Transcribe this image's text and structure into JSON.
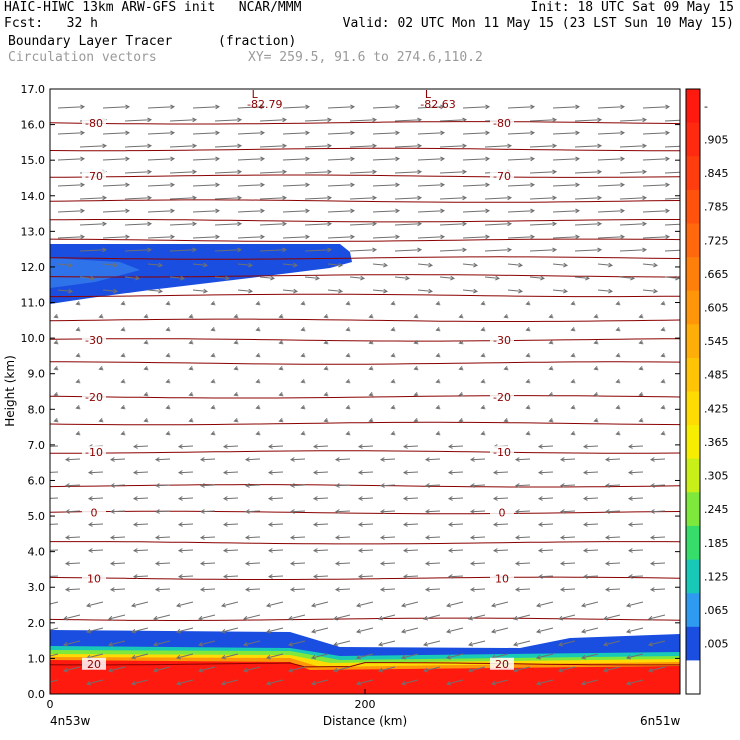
{
  "header": {
    "line1_left": "HAIC-HIWC 13km ARW-GFS init   NCAR/MMM",
    "line1_right": "Init: 18 UTC Sat 09 May 15",
    "line2_left": "Fcst:   32 h",
    "line2_right": "Valid: 02 UTC Mon 11 May 15 (23 LST Sun 10 May 15)",
    "field_name": "Boundary Layer Tracer",
    "field_units": "(fraction)",
    "vector_name": "Circulation vectors",
    "xy_info": "XY= 259.5, 91.6 to 274.6,110.2"
  },
  "chart_data": {
    "type": "cross-section",
    "title": "Boundary Layer Tracer (fraction)",
    "ylabel": "Height (km)",
    "xlabel": "Distance (km)",
    "ylim": [
      0,
      17
    ],
    "xlim": [
      0,
      400
    ],
    "y_ticks": [
      "0.0",
      "1.0",
      "2.0",
      "3.0",
      "4.0",
      "5.0",
      "6.0",
      "7.0",
      "8.0",
      "9.0",
      "10.0",
      "11.0",
      "12.0",
      "13.0",
      "14.0",
      "15.0",
      "16.0",
      "17.0"
    ],
    "x_ticks": [
      {
        "value": 0,
        "label": "0"
      },
      {
        "value": 200,
        "label": "200"
      }
    ],
    "x_endpoints": {
      "left": "4n53w",
      "right": "6n51w"
    },
    "colorbar": {
      "labels": [
        "-",
        ".905",
        ".845",
        ".785",
        ".725",
        ".665",
        ".605",
        ".545",
        ".485",
        ".425",
        ".365",
        ".305",
        ".245",
        ".185",
        ".125",
        ".065",
        ".005"
      ],
      "colors": [
        "#ff1a10",
        "#ff2a0f",
        "#ff3d0e",
        "#ff520d",
        "#ff680c",
        "#ff7f0b",
        "#ff960a",
        "#ffad08",
        "#ffc406",
        "#ffdb04",
        "#f5ee03",
        "#c8f018",
        "#7fe83c",
        "#36dd6a",
        "#19c9b8",
        "#2f9bf0",
        "#1a4ee0",
        "#ffffff"
      ]
    },
    "contours": [
      {
        "label": "-80",
        "height_km": 16.05
      },
      {
        "label": "",
        "height_km": 15.3
      },
      {
        "label": "-70",
        "height_km": 14.55
      },
      {
        "label": "",
        "height_km": 13.85
      },
      {
        "label": "",
        "height_km": 13.3
      },
      {
        "label": "",
        "height_km": 12.75
      },
      {
        "label": "",
        "height_km": 12.25
      },
      {
        "label": "",
        "height_km": 11.75
      },
      {
        "label": "",
        "height_km": 11.2
      },
      {
        "label": "",
        "height_km": 10.5
      },
      {
        "label": "-30",
        "height_km": 9.95
      },
      {
        "label": "",
        "height_km": 9.3
      },
      {
        "label": "-20",
        "height_km": 8.35
      },
      {
        "label": "",
        "height_km": 7.6
      },
      {
        "label": "-10",
        "height_km": 6.8
      },
      {
        "label": "",
        "height_km": 5.85
      },
      {
        "label": "0",
        "height_km": 5.1
      },
      {
        "label": "",
        "height_km": 4.25
      },
      {
        "label": "10",
        "height_km": 3.25
      },
      {
        "label": "",
        "height_km": 2.1
      },
      {
        "label": "20",
        "height_km": 0.85
      }
    ],
    "lows": [
      {
        "label": "-82.79",
        "x_km": 130
      },
      {
        "label": "-82.63",
        "x_km": 240
      }
    ]
  }
}
